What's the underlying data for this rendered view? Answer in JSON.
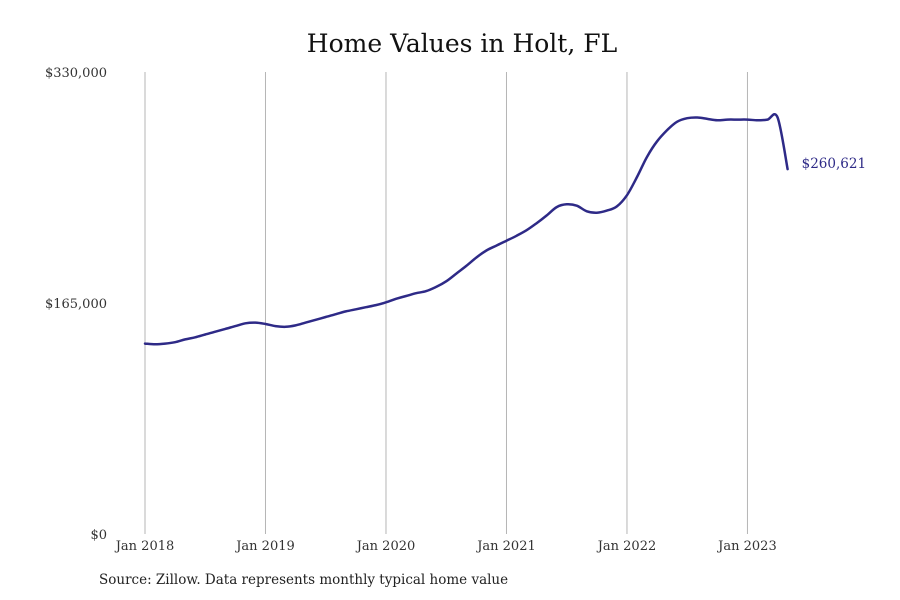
{
  "source_text": "Source: Zillow. Data represents monthly typical home value",
  "colors": {
    "line": "#2e2a87",
    "gridline": "#b5b5b5"
  },
  "chart_data": {
    "type": "line",
    "title": "Home Values in Holt, FL",
    "xlabel": "",
    "ylabel": "",
    "ylim": [
      0,
      330000
    ],
    "y_ticks": [
      {
        "value": 0,
        "label": "$0"
      },
      {
        "value": 165000,
        "label": "$165,000"
      },
      {
        "value": 330000,
        "label": "$330,000"
      }
    ],
    "x_ticks": [
      {
        "date": "2018-01",
        "label": "Jan 2018"
      },
      {
        "date": "2019-01",
        "label": "Jan 2019"
      },
      {
        "date": "2020-01",
        "label": "Jan 2020"
      },
      {
        "date": "2021-01",
        "label": "Jan 2021"
      },
      {
        "date": "2022-01",
        "label": "Jan 2022"
      },
      {
        "date": "2023-01",
        "label": "Jan 2023"
      }
    ],
    "xlim": [
      "2018-01",
      "2024-02"
    ],
    "grid": {
      "vertical": true,
      "horizontal": false
    },
    "legend": "none",
    "end_label": "$260,621",
    "series": [
      {
        "x": [
          "2018-01",
          "2018-02",
          "2018-03",
          "2018-04",
          "2018-05",
          "2018-06",
          "2018-07",
          "2018-08",
          "2018-09",
          "2018-10",
          "2018-11",
          "2018-12",
          "2019-01",
          "2019-02",
          "2019-03",
          "2019-04",
          "2019-05",
          "2019-06",
          "2019-07",
          "2019-08",
          "2019-09",
          "2019-10",
          "2019-11",
          "2019-12",
          "2020-01",
          "2020-02",
          "2020-03",
          "2020-04",
          "2020-05",
          "2020-06",
          "2020-07",
          "2020-08",
          "2020-09",
          "2020-10",
          "2020-11",
          "2020-12",
          "2021-01",
          "2021-02",
          "2021-03",
          "2021-04",
          "2021-05",
          "2021-06",
          "2021-07",
          "2021-08",
          "2021-09",
          "2021-10",
          "2021-11",
          "2021-12",
          "2022-01",
          "2022-02",
          "2022-03",
          "2022-04",
          "2022-05",
          "2022-06",
          "2022-07",
          "2022-08",
          "2022-09",
          "2022-10",
          "2022-11",
          "2022-12",
          "2023-01",
          "2023-02",
          "2023-03",
          "2023-04",
          "2023-05"
        ],
        "values": [
          136000,
          135500,
          136000,
          137000,
          139000,
          140500,
          142500,
          144500,
          146500,
          148500,
          150500,
          151000,
          150000,
          148500,
          148000,
          149000,
          151000,
          153000,
          155000,
          157000,
          159000,
          160500,
          162000,
          163500,
          165500,
          168000,
          170000,
          172000,
          173500,
          176500,
          180500,
          186000,
          191500,
          197500,
          202500,
          206000,
          209500,
          213000,
          217000,
          222000,
          227500,
          233500,
          235500,
          234500,
          230500,
          229500,
          231000,
          234000,
          242000,
          255000,
          269500,
          280500,
          288500,
          294500,
          297000,
          297500,
          296500,
          295500,
          296000,
          296000,
          296000,
          295500,
          296000,
          297500,
          260621
        ]
      }
    ]
  }
}
